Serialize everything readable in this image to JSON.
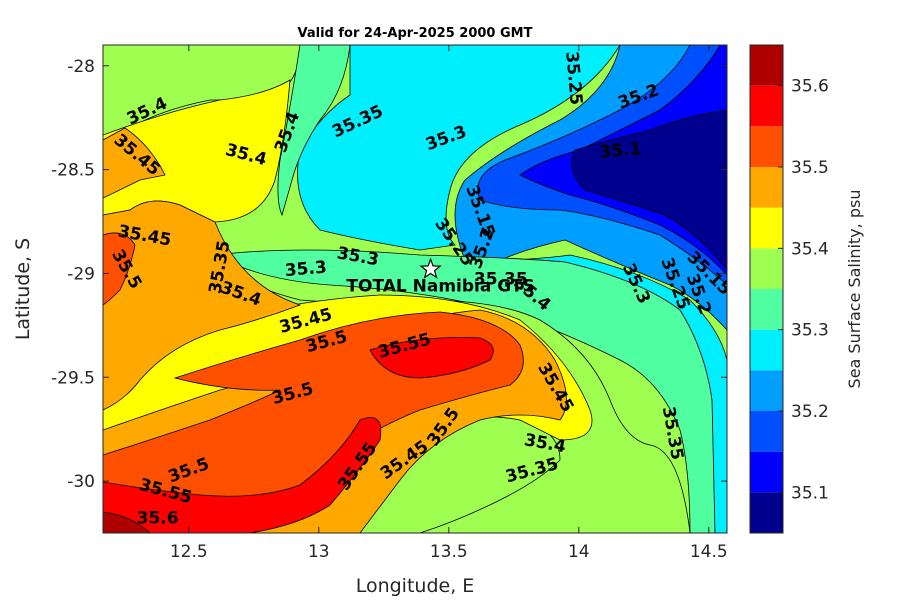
{
  "chart_data": {
    "type": "contour",
    "title": "Valid for 24-Apr-2025 2000 GMT",
    "xlabel": "Longitude, E",
    "ylabel": "Latitude, S",
    "xlim": [
      12.17,
      14.57
    ],
    "ylim": [
      -30.25,
      -27.9
    ],
    "xticks": [
      {
        "value": 12.5,
        "label": "12.5"
      },
      {
        "value": 13,
        "label": "13"
      },
      {
        "value": 13.5,
        "label": "13.5"
      },
      {
        "value": 14,
        "label": "14"
      },
      {
        "value": 14.5,
        "label": "14.5"
      }
    ],
    "yticks": [
      {
        "value": -28,
        "label": "-28"
      },
      {
        "value": -28.5,
        "label": "-28.5"
      },
      {
        "value": -29,
        "label": "-29"
      },
      {
        "value": -29.5,
        "label": "-29.5"
      },
      {
        "value": -30,
        "label": "-30"
      }
    ],
    "colorbar": {
      "label": "Sea Surface Salinity, psu",
      "range": [
        35.05,
        35.65
      ],
      "levels": [
        35.05,
        35.1,
        35.15,
        35.2,
        35.25,
        35.3,
        35.35,
        35.4,
        35.45,
        35.5,
        35.55,
        35.6,
        35.65
      ],
      "colors": [
        "#00008f",
        "#0000ff",
        "#0050ff",
        "#009fff",
        "#00efff",
        "#50ff9f",
        "#9fff50",
        "#ffff00",
        "#ffa800",
        "#ff5000",
        "#ff0000",
        "#af0000"
      ],
      "ticks": [
        {
          "value": 35.1,
          "label": "35.1"
        },
        {
          "value": 35.2,
          "label": "35.2"
        },
        {
          "value": 35.3,
          "label": "35.3"
        },
        {
          "value": 35.4,
          "label": "35.4"
        },
        {
          "value": 35.5,
          "label": "35.5"
        },
        {
          "value": 35.6,
          "label": "35.6"
        }
      ]
    },
    "contour_labels": [
      {
        "text": "35.4",
        "lon": 12.34,
        "lat": -28.22,
        "angle": -25
      },
      {
        "text": "35.45",
        "lon": 12.3,
        "lat": -28.43,
        "angle": 40
      },
      {
        "text": "35.4",
        "lon": 12.72,
        "lat": -28.43,
        "angle": 15
      },
      {
        "text": "35.4",
        "lon": 12.88,
        "lat": -28.32,
        "angle": -70
      },
      {
        "text": "35.35",
        "lon": 13.15,
        "lat": -28.27,
        "angle": -25
      },
      {
        "text": "35.3",
        "lon": 13.49,
        "lat": -28.35,
        "angle": -20
      },
      {
        "text": "35.25",
        "lon": 13.98,
        "lat": -28.06,
        "angle": 85
      },
      {
        "text": "35.2",
        "lon": 14.23,
        "lat": -28.15,
        "angle": -20
      },
      {
        "text": "35.1",
        "lon": 14.16,
        "lat": -28.41,
        "angle": -5
      },
      {
        "text": "35.45",
        "lon": 12.33,
        "lat": -28.82,
        "angle": 10
      },
      {
        "text": "35.5",
        "lon": 12.26,
        "lat": -28.98,
        "angle": 60
      },
      {
        "text": "35.35",
        "lon": 12.62,
        "lat": -28.97,
        "angle": -80
      },
      {
        "text": "35.3",
        "lon": 13.15,
        "lat": -28.92,
        "angle": 10
      },
      {
        "text": "35.15",
        "lon": 13.62,
        "lat": -28.7,
        "angle": 70
      },
      {
        "text": "35.25",
        "lon": 13.52,
        "lat": -28.85,
        "angle": 55
      },
      {
        "text": "35.2",
        "lon": 13.63,
        "lat": -28.88,
        "angle": -70
      },
      {
        "text": "35.3",
        "lon": 12.95,
        "lat": -28.98,
        "angle": -5
      },
      {
        "text": "35.35",
        "lon": 13.7,
        "lat": -29.03,
        "angle": 0
      },
      {
        "text": "35.4",
        "lon": 12.7,
        "lat": -29.1,
        "angle": 20
      },
      {
        "text": "35.4",
        "lon": 13.82,
        "lat": -29.1,
        "angle": 40
      },
      {
        "text": "35.3",
        "lon": 14.22,
        "lat": -29.05,
        "angle": 65
      },
      {
        "text": "35.25",
        "lon": 14.37,
        "lat": -29.05,
        "angle": 70
      },
      {
        "text": "35.2",
        "lon": 14.46,
        "lat": -29.1,
        "angle": 70
      },
      {
        "text": "35.15",
        "lon": 14.5,
        "lat": -29.0,
        "angle": 45
      },
      {
        "text": "35.45",
        "lon": 12.95,
        "lat": -29.23,
        "angle": -15
      },
      {
        "text": "35.5",
        "lon": 13.03,
        "lat": -29.33,
        "angle": -15
      },
      {
        "text": "35.55",
        "lon": 13.33,
        "lat": -29.35,
        "angle": -15
      },
      {
        "text": "35.5",
        "lon": 12.9,
        "lat": -29.58,
        "angle": -15
      },
      {
        "text": "35.45",
        "lon": 13.91,
        "lat": -29.55,
        "angle": 60
      },
      {
        "text": "35.35",
        "lon": 14.36,
        "lat": -29.77,
        "angle": 80
      },
      {
        "text": "35.5",
        "lon": 13.48,
        "lat": -29.74,
        "angle": -55
      },
      {
        "text": "35.4",
        "lon": 13.87,
        "lat": -29.82,
        "angle": 10
      },
      {
        "text": "35.45",
        "lon": 13.33,
        "lat": -29.9,
        "angle": -35
      },
      {
        "text": "35.55",
        "lon": 13.15,
        "lat": -29.93,
        "angle": -55
      },
      {
        "text": "35.35",
        "lon": 13.82,
        "lat": -29.95,
        "angle": -15
      },
      {
        "text": "35.5",
        "lon": 12.5,
        "lat": -29.95,
        "angle": -20
      },
      {
        "text": "35.55",
        "lon": 12.41,
        "lat": -30.05,
        "angle": 15
      },
      {
        "text": "35.6",
        "lon": 12.38,
        "lat": -30.18,
        "angle": 0
      }
    ],
    "site": {
      "name": "TOTAL Namibia GTS",
      "lon": 13.43,
      "lat": -28.98
    }
  }
}
